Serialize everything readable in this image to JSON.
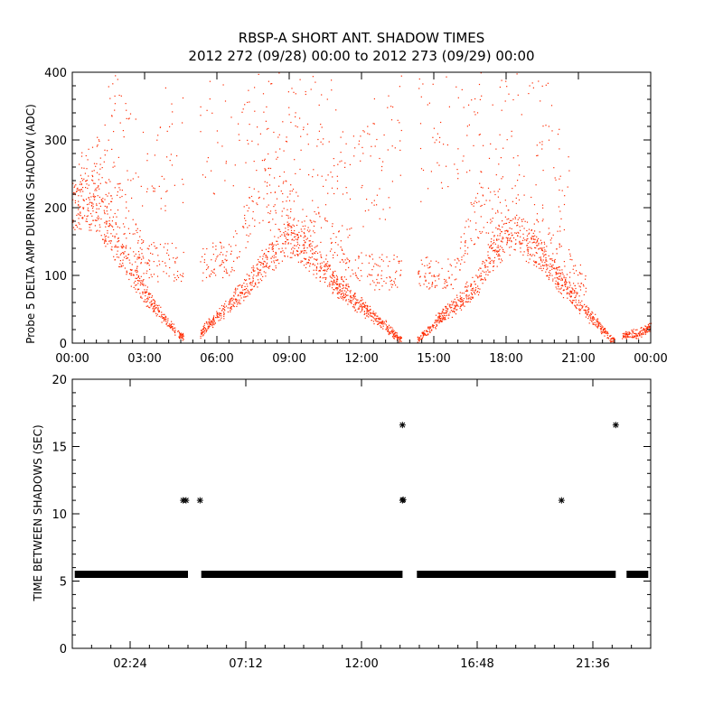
{
  "title_line1": "RBSP-A SHORT ANT. SHADOW TIMES",
  "title_line2": "2012 272 (09/28) 00:00 to 2012 273 (09/29) 00:00",
  "colors": {
    "upper_points": "#ff2a00",
    "lower_points": "#000000",
    "axes": "#000000",
    "background": "#ffffff"
  },
  "chart_data": [
    {
      "type": "scatter",
      "xlabel": "",
      "ylabel": "Probe 5 DELTA AMP DURING SHADOW (ADC)",
      "xlim": [
        0,
        24
      ],
      "ylim": [
        0,
        400
      ],
      "x_unit": "hours of day",
      "x_tick_values": [
        0,
        3,
        6,
        9,
        12,
        15,
        18,
        21,
        24
      ],
      "x_tick_labels": [
        "00:00",
        "03:00",
        "06:00",
        "09:00",
        "12:00",
        "15:00",
        "18:00",
        "21:00",
        "00:00"
      ],
      "y_ticks": [
        0,
        100,
        200,
        300,
        400
      ],
      "series": [
        {
          "band": "main",
          "points": [
            [
              0.0,
              200
            ],
            [
              0.5,
              210
            ],
            [
              1.0,
              200
            ],
            [
              1.5,
              170
            ],
            [
              2.0,
              135
            ],
            [
              2.5,
              100
            ],
            [
              3.0,
              75
            ],
            [
              3.5,
              50
            ],
            [
              4.0,
              30
            ],
            [
              4.5,
              10
            ],
            [
              5.3,
              15
            ],
            [
              6.0,
              40
            ],
            [
              7.0,
              75
            ],
            [
              8.0,
              120
            ],
            [
              9.0,
              160
            ],
            [
              10.0,
              125
            ],
            [
              11.0,
              85
            ],
            [
              12.0,
              55
            ],
            [
              13.0,
              25
            ],
            [
              13.6,
              5
            ],
            [
              14.3,
              5
            ],
            [
              15.0,
              30
            ],
            [
              16.0,
              60
            ],
            [
              16.8,
              90
            ],
            [
              17.5,
              140
            ],
            [
              18.5,
              165
            ],
            [
              19.5,
              125
            ],
            [
              20.5,
              80
            ],
            [
              21.5,
              40
            ],
            [
              22.4,
              5
            ],
            [
              22.8,
              12
            ],
            [
              23.5,
              15
            ],
            [
              24.0,
              25
            ]
          ]
        },
        {
          "band": "upper",
          "points": [
            [
              0.2,
              230
            ],
            [
              0.7,
              255
            ],
            [
              1.2,
              250
            ],
            [
              1.7,
              220
            ],
            [
              2.4,
              160
            ],
            [
              3.0,
              120
            ],
            [
              6.5,
              120
            ],
            [
              7.2,
              180
            ],
            [
              7.8,
              230
            ],
            [
              8.5,
              200
            ],
            [
              9.3,
              190
            ],
            [
              10.0,
              175
            ],
            [
              10.7,
              150
            ],
            [
              11.5,
              110
            ],
            [
              15.8,
              100
            ],
            [
              16.5,
              170
            ],
            [
              17.0,
              200
            ],
            [
              17.8,
              180
            ],
            [
              18.5,
              210
            ],
            [
              19.3,
              185
            ],
            [
              20.0,
              130
            ],
            [
              20.7,
              110
            ],
            [
              21.3,
              85
            ]
          ]
        },
        {
          "band": "spike",
          "points": [
            [
              1.3,
              380
            ],
            [
              1.8,
              300
            ],
            [
              2.2,
              260
            ],
            [
              7.8,
              380
            ],
            [
              8.2,
              340
            ],
            [
              8.8,
              280
            ],
            [
              9.3,
              400
            ],
            [
              9.8,
              340
            ],
            [
              10.4,
              310
            ],
            [
              10.8,
              290
            ],
            [
              11.1,
              230
            ],
            [
              16.8,
              390
            ],
            [
              17.3,
              350
            ],
            [
              17.8,
              300
            ],
            [
              18.2,
              400
            ],
            [
              19.0,
              370
            ],
            [
              19.5,
              330
            ],
            [
              20.0,
              250
            ],
            [
              20.6,
              200
            ]
          ]
        }
      ]
    },
    {
      "type": "scatter",
      "xlabel": "",
      "ylabel": "TIME BETWEEN SHADOWS (SEC)",
      "xlim": [
        0,
        24
      ],
      "ylim": [
        0,
        20
      ],
      "x_unit": "hours of day",
      "x_tick_values": [
        2.4,
        7.2,
        12.0,
        16.8,
        21.6
      ],
      "x_tick_labels": [
        "02:24",
        "07:12",
        "12:00",
        "16:48",
        "21:36"
      ],
      "y_ticks": [
        0,
        5,
        10,
        15,
        20
      ],
      "baseline_segments": [
        {
          "from": 0.1,
          "to": 4.8,
          "value": 5.5
        },
        {
          "from": 5.35,
          "to": 13.7,
          "value": 5.5
        },
        {
          "from": 14.3,
          "to": 22.55,
          "value": 5.5
        },
        {
          "from": 23.0,
          "to": 23.9,
          "value": 5.5
        }
      ],
      "outliers": [
        [
          4.6,
          11.0
        ],
        [
          4.72,
          11.0
        ],
        [
          5.3,
          11.0
        ],
        [
          13.7,
          16.6
        ],
        [
          13.7,
          11.0
        ],
        [
          13.73,
          11.05
        ],
        [
          20.3,
          11.0
        ],
        [
          22.55,
          16.6
        ]
      ]
    }
  ]
}
